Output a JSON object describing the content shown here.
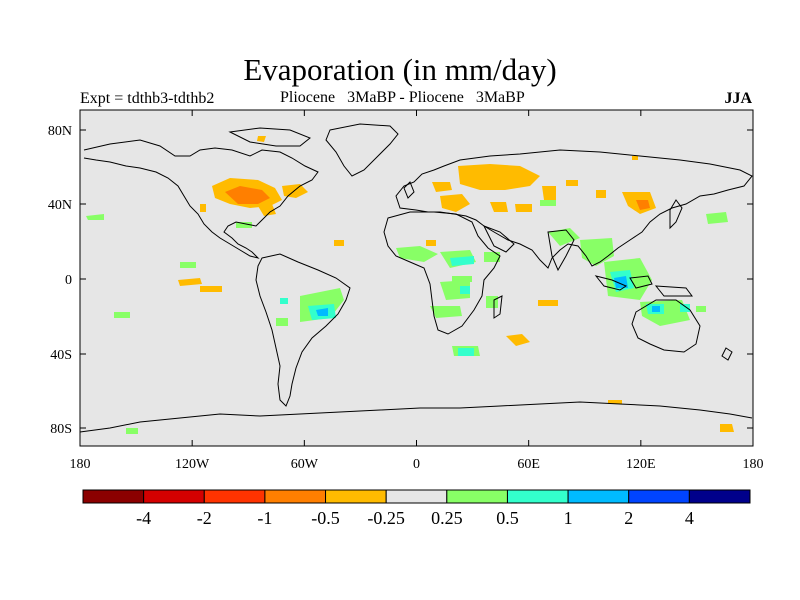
{
  "title": "Evaporation (in mm/day)",
  "left_label": "Expt = tdthb3-tdthb2",
  "center_label": "Pliocene   3MaBP - Pliocene   3MaBP",
  "right_label": "JJA",
  "lon_ticks": [
    "180",
    "120W",
    "60W",
    "0",
    "60E",
    "120E",
    "180"
  ],
  "lat_ticks": [
    "80N",
    "40N",
    "0",
    "40S",
    "80S"
  ],
  "colorbar": {
    "colors": [
      "#8b0000",
      "#d40000",
      "#ff3300",
      "#ff7f00",
      "#ffbb00",
      "#e6e6e6",
      "#88ff66",
      "#33ffcc",
      "#00bbff",
      "#0044ff",
      "#00008b"
    ],
    "labels": [
      "-4",
      "-2",
      "-1",
      "-0.5",
      "-0.25",
      "0.25",
      "0.5",
      "1",
      "2",
      "4"
    ]
  },
  "map_background": "#e6e6e6"
}
